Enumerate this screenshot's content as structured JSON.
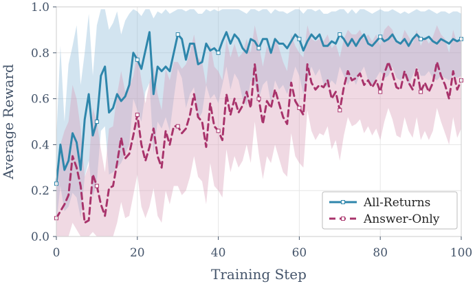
{
  "chart_data": {
    "type": "line",
    "title": "",
    "xlabel": "Training Step",
    "ylabel": "Average Reward",
    "xlim": [
      0,
      100
    ],
    "ylim": [
      0,
      1.0
    ],
    "xticks": [
      "0",
      "20",
      "40",
      "60",
      "80",
      "100"
    ],
    "yticks": [
      "0.0",
      "0.2",
      "0.4",
      "0.6",
      "0.8",
      "1.0"
    ],
    "grid": true,
    "legend_position": "lower-right",
    "x": [
      0,
      1,
      2,
      3,
      4,
      5,
      6,
      7,
      8,
      9,
      10,
      11,
      12,
      13,
      14,
      15,
      16,
      17,
      18,
      19,
      20,
      21,
      22,
      23,
      24,
      25,
      26,
      27,
      28,
      29,
      30,
      31,
      32,
      33,
      34,
      35,
      36,
      37,
      38,
      39,
      40,
      41,
      42,
      43,
      44,
      45,
      46,
      47,
      48,
      49,
      50,
      51,
      52,
      53,
      54,
      55,
      56,
      57,
      58,
      59,
      60,
      61,
      62,
      63,
      64,
      65,
      66,
      67,
      68,
      69,
      70,
      71,
      72,
      73,
      74,
      75,
      76,
      77,
      78,
      79,
      80,
      81,
      82,
      83,
      84,
      85,
      86,
      87,
      88,
      89,
      90,
      91,
      92,
      93,
      94,
      95,
      96,
      97,
      98,
      99,
      100
    ],
    "series": [
      {
        "name": "All-Returns",
        "color": "#2e86ab",
        "fill_color": "#7fb3d5",
        "values": [
          0.23,
          0.4,
          0.29,
          0.33,
          0.45,
          0.41,
          0.29,
          0.51,
          0.62,
          0.44,
          0.5,
          0.7,
          0.74,
          0.54,
          0.56,
          0.62,
          0.59,
          0.61,
          0.66,
          0.8,
          0.77,
          0.73,
          0.81,
          0.89,
          0.62,
          0.74,
          0.72,
          0.74,
          0.72,
          0.8,
          0.88,
          0.86,
          0.77,
          0.84,
          0.84,
          0.75,
          0.76,
          0.84,
          0.81,
          0.82,
          0.8,
          0.85,
          0.89,
          0.84,
          0.88,
          0.86,
          0.82,
          0.8,
          0.86,
          0.85,
          0.82,
          0.86,
          0.86,
          0.8,
          0.86,
          0.84,
          0.84,
          0.82,
          0.85,
          0.88,
          0.86,
          0.81,
          0.85,
          0.88,
          0.86,
          0.88,
          0.83,
          0.83,
          0.85,
          0.84,
          0.88,
          0.86,
          0.83,
          0.86,
          0.83,
          0.86,
          0.88,
          0.84,
          0.83,
          0.85,
          0.87,
          0.85,
          0.86,
          0.88,
          0.85,
          0.84,
          0.86,
          0.83,
          0.86,
          0.88,
          0.86,
          0.86,
          0.87,
          0.85,
          0.84,
          0.86,
          0.85,
          0.84,
          0.86,
          0.85,
          0.86
        ],
        "upper": [
          0.43,
          0.83,
          0.5,
          0.75,
          0.83,
          0.92,
          0.66,
          0.8,
          0.97,
          0.7,
          0.92,
          0.99,
          0.99,
          0.9,
          0.93,
          0.98,
          0.88,
          0.94,
          0.97,
          0.99,
          0.98,
          0.96,
          0.99,
          0.99,
          0.95,
          0.98,
          0.97,
          0.99,
          0.97,
          0.98,
          0.99,
          0.99,
          0.98,
          0.99,
          0.99,
          0.97,
          0.97,
          0.99,
          0.98,
          0.99,
          0.98,
          0.99,
          0.99,
          0.99,
          0.99,
          0.99,
          0.98,
          0.97,
          0.99,
          0.99,
          0.98,
          0.99,
          0.99,
          0.97,
          0.99,
          0.98,
          0.98,
          0.97,
          0.98,
          0.99,
          0.99,
          0.97,
          0.99,
          0.99,
          0.98,
          0.99,
          0.97,
          0.97,
          0.98,
          0.98,
          0.99,
          0.99,
          0.97,
          0.99,
          0.97,
          0.99,
          0.99,
          0.98,
          0.97,
          0.98,
          0.99,
          0.98,
          0.98,
          0.99,
          0.98,
          0.97,
          0.98,
          0.97,
          0.98,
          0.99,
          0.98,
          0.98,
          0.99,
          0.98,
          0.97,
          0.98,
          0.98,
          0.97,
          0.98,
          0.98,
          0.97
        ],
        "lower": [
          0.06,
          0.22,
          0.11,
          0.13,
          0.19,
          0.17,
          0.08,
          0.26,
          0.33,
          0.17,
          0.24,
          0.46,
          0.48,
          0.27,
          0.28,
          0.3,
          0.32,
          0.36,
          0.4,
          0.6,
          0.55,
          0.5,
          0.63,
          0.67,
          0.36,
          0.5,
          0.47,
          0.52,
          0.46,
          0.6,
          0.73,
          0.69,
          0.56,
          0.62,
          0.65,
          0.51,
          0.54,
          0.66,
          0.6,
          0.62,
          0.58,
          0.66,
          0.74,
          0.64,
          0.71,
          0.68,
          0.6,
          0.57,
          0.68,
          0.66,
          0.6,
          0.66,
          0.68,
          0.58,
          0.68,
          0.64,
          0.66,
          0.62,
          0.67,
          0.74,
          0.7,
          0.62,
          0.68,
          0.74,
          0.7,
          0.73,
          0.66,
          0.65,
          0.68,
          0.66,
          0.74,
          0.7,
          0.66,
          0.7,
          0.66,
          0.71,
          0.74,
          0.68,
          0.66,
          0.69,
          0.72,
          0.69,
          0.7,
          0.74,
          0.69,
          0.68,
          0.7,
          0.66,
          0.7,
          0.74,
          0.7,
          0.7,
          0.72,
          0.69,
          0.68,
          0.7,
          0.69,
          0.68,
          0.7,
          0.69,
          0.7
        ],
        "markers": [
          0,
          10,
          20,
          30,
          40,
          50,
          60,
          70,
          80,
          90,
          100
        ]
      },
      {
        "name": "Answer-Only",
        "color": "#a8336b",
        "fill_color": "#d89ab6",
        "values": [
          0.08,
          0.11,
          0.14,
          0.18,
          0.35,
          0.3,
          0.22,
          0.06,
          0.07,
          0.27,
          0.22,
          0.14,
          0.09,
          0.21,
          0.22,
          0.32,
          0.43,
          0.34,
          0.36,
          0.44,
          0.53,
          0.4,
          0.33,
          0.39,
          0.47,
          0.35,
          0.3,
          0.46,
          0.4,
          0.48,
          0.48,
          0.45,
          0.47,
          0.53,
          0.62,
          0.52,
          0.5,
          0.39,
          0.58,
          0.48,
          0.46,
          0.42,
          0.62,
          0.53,
          0.6,
          0.54,
          0.57,
          0.63,
          0.56,
          0.75,
          0.6,
          0.49,
          0.59,
          0.56,
          0.64,
          0.58,
          0.52,
          0.49,
          0.67,
          0.59,
          0.56,
          0.53,
          0.75,
          0.67,
          0.64,
          0.66,
          0.65,
          0.68,
          0.6,
          0.63,
          0.55,
          0.65,
          0.72,
          0.68,
          0.69,
          0.71,
          0.66,
          0.68,
          0.65,
          0.68,
          0.63,
          0.71,
          0.76,
          0.71,
          0.65,
          0.64,
          0.72,
          0.67,
          0.64,
          0.73,
          0.63,
          0.67,
          0.63,
          0.67,
          0.76,
          0.7,
          0.66,
          0.6,
          0.72,
          0.64,
          0.68
        ],
        "upper": [
          0.28,
          0.4,
          0.46,
          0.5,
          0.66,
          0.6,
          0.47,
          0.26,
          0.31,
          0.56,
          0.5,
          0.38,
          0.28,
          0.47,
          0.48,
          0.62,
          0.72,
          0.63,
          0.65,
          0.7,
          0.8,
          0.68,
          0.58,
          0.67,
          0.74,
          0.62,
          0.55,
          0.73,
          0.68,
          0.76,
          0.76,
          0.73,
          0.75,
          0.8,
          0.88,
          0.78,
          0.76,
          0.66,
          0.84,
          0.74,
          0.72,
          0.68,
          0.86,
          0.78,
          0.84,
          0.78,
          0.8,
          0.86,
          0.8,
          0.92,
          0.84,
          0.74,
          0.83,
          0.8,
          0.87,
          0.82,
          0.76,
          0.72,
          0.88,
          0.83,
          0.8,
          0.78,
          0.92,
          0.86,
          0.85,
          0.86,
          0.85,
          0.88,
          0.82,
          0.84,
          0.78,
          0.86,
          0.9,
          0.88,
          0.88,
          0.9,
          0.86,
          0.88,
          0.85,
          0.88,
          0.83,
          0.9,
          0.92,
          0.9,
          0.85,
          0.84,
          0.9,
          0.87,
          0.84,
          0.9,
          0.83,
          0.87,
          0.84,
          0.87,
          0.92,
          0.88,
          0.86,
          0.8,
          0.9,
          0.84,
          0.88
        ],
        "lower": [
          0.0,
          0.0,
          0.0,
          0.0,
          0.06,
          0.03,
          0.0,
          0.0,
          0.0,
          0.02,
          0.0,
          0.0,
          0.0,
          0.0,
          0.0,
          0.06,
          0.15,
          0.08,
          0.09,
          0.18,
          0.27,
          0.13,
          0.08,
          0.13,
          0.21,
          0.09,
          0.06,
          0.2,
          0.14,
          0.22,
          0.22,
          0.18,
          0.2,
          0.26,
          0.35,
          0.26,
          0.24,
          0.14,
          0.32,
          0.22,
          0.2,
          0.17,
          0.38,
          0.28,
          0.35,
          0.3,
          0.33,
          0.4,
          0.32,
          0.5,
          0.36,
          0.25,
          0.35,
          0.32,
          0.4,
          0.34,
          0.28,
          0.26,
          0.45,
          0.35,
          0.32,
          0.3,
          0.55,
          0.46,
          0.42,
          0.45,
          0.44,
          0.48,
          0.38,
          0.42,
          0.33,
          0.44,
          0.52,
          0.48,
          0.49,
          0.51,
          0.45,
          0.48,
          0.44,
          0.47,
          0.42,
          0.5,
          0.56,
          0.51,
          0.44,
          0.43,
          0.52,
          0.46,
          0.43,
          0.52,
          0.42,
          0.46,
          0.42,
          0.46,
          0.56,
          0.5,
          0.45,
          0.4,
          0.52,
          0.43,
          0.47
        ],
        "markers": [
          0,
          10,
          20,
          30,
          40,
          50,
          60,
          70,
          80,
          90,
          100
        ]
      }
    ]
  }
}
